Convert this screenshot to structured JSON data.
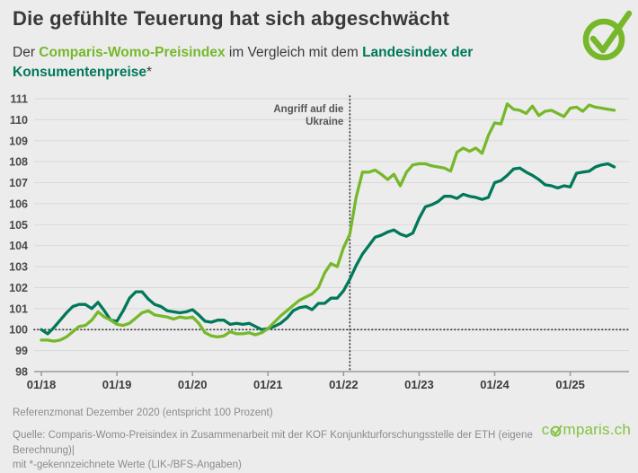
{
  "header": {
    "title": "Die gefühlte Teuerung hat sich abgeschwächt",
    "subtitle": {
      "prefix": "Der ",
      "series1_label": "Comparis-Womo-Preisindex",
      "middle": " im Vergleich mit dem ",
      "series2_label": "Landesindex der Konsumentenpreise",
      "suffix": "*"
    }
  },
  "colors": {
    "womo_green": "#76b82a",
    "lik_green": "#00785a",
    "background": "#ececec",
    "grid": "#d9d9d9",
    "axis": "#9a9a9a",
    "dotted_line": "#3c3c3c",
    "text_dark": "#3b3b3b",
    "text_gray": "#8b8b8b",
    "brand_green": "#82c341"
  },
  "chart_data": {
    "type": "line",
    "title": "Comparis-Womo-Preisindex vs. Landesindex der Konsumentenpreise",
    "x_unit": "month",
    "x_start": "01/2018",
    "x_end": "08/2025",
    "x_tick_labels": [
      "01/18",
      "01/19",
      "01/20",
      "01/21",
      "01/22",
      "01/23",
      "01/24",
      "01/25"
    ],
    "x_tick_month_indices": [
      0,
      12,
      24,
      36,
      48,
      60,
      72,
      84
    ],
    "ylim": [
      98,
      111
    ],
    "y_ticks": [
      98,
      99,
      100,
      101,
      102,
      103,
      104,
      105,
      106,
      107,
      108,
      109,
      110,
      111
    ],
    "grid": true,
    "reference_line": {
      "value": 100
    },
    "event_line": {
      "month_index": 49,
      "x_label": "02/2022",
      "label_lines": [
        "Angriff auf die",
        "Ukraine"
      ]
    },
    "series": [
      {
        "name": "Landesindex der Konsumentenpreise",
        "color": "#00785a",
        "values": [
          100.0,
          99.8,
          100.1,
          100.45,
          100.8,
          101.1,
          101.2,
          101.2,
          101.0,
          101.3,
          100.9,
          100.45,
          100.4,
          100.9,
          101.5,
          101.8,
          101.8,
          101.45,
          101.2,
          101.1,
          100.9,
          100.85,
          100.8,
          100.85,
          100.95,
          100.7,
          100.4,
          100.35,
          100.45,
          100.45,
          100.25,
          100.3,
          100.25,
          100.3,
          100.15,
          100.0,
          100.05,
          100.15,
          100.3,
          100.55,
          100.9,
          101.05,
          101.1,
          100.95,
          101.25,
          101.25,
          101.5,
          101.5,
          101.85,
          102.4,
          103.05,
          103.6,
          104.0,
          104.4,
          104.5,
          104.65,
          104.75,
          104.55,
          104.45,
          104.6,
          105.3,
          105.85,
          105.95,
          106.1,
          106.35,
          106.35,
          106.25,
          106.45,
          106.35,
          106.3,
          106.2,
          106.3,
          107.0,
          107.1,
          107.35,
          107.65,
          107.7,
          107.5,
          107.35,
          107.15,
          106.9,
          106.85,
          106.75,
          106.85,
          106.8,
          107.45,
          107.5,
          107.55,
          107.75,
          107.85,
          107.9,
          107.75
        ]
      },
      {
        "name": "Comparis-Womo-Preisindex",
        "color": "#76b82a",
        "values": [
          99.5,
          99.5,
          99.45,
          99.5,
          99.65,
          99.9,
          100.15,
          100.2,
          100.45,
          100.85,
          100.6,
          100.45,
          100.25,
          100.2,
          100.3,
          100.55,
          100.8,
          100.9,
          100.7,
          100.65,
          100.6,
          100.5,
          100.6,
          100.55,
          100.6,
          100.3,
          99.85,
          99.7,
          99.65,
          99.7,
          99.9,
          99.8,
          99.8,
          99.85,
          99.75,
          99.85,
          100.05,
          100.35,
          100.65,
          100.9,
          101.15,
          101.4,
          101.55,
          101.7,
          102.0,
          102.7,
          103.15,
          103.0,
          103.9,
          104.55,
          106.3,
          107.5,
          107.5,
          107.6,
          107.4,
          107.15,
          107.4,
          106.85,
          107.5,
          107.85,
          107.9,
          107.9,
          107.8,
          107.75,
          107.7,
          107.55,
          108.45,
          108.65,
          108.5,
          108.65,
          108.4,
          109.25,
          109.85,
          109.8,
          110.75,
          110.5,
          110.45,
          110.3,
          110.65,
          110.2,
          110.4,
          110.45,
          110.3,
          110.15,
          110.55,
          110.6,
          110.4,
          110.7,
          110.6,
          110.55,
          110.5,
          110.45
        ]
      }
    ]
  },
  "footer": {
    "reference_note": "Referenzmonat Dezember 2020 (entspricht 100 Prozent)",
    "source_line1": "Quelle: Comparis-Womo-Preisindex in Zusammenarbeit mit der KOF Konjunkturforschungsstelle der ETH (eigene Berechnung)|",
    "source_line2": "mit *-gekennzeichnete Werte (LIK-/BFS-Angaben)",
    "brand": {
      "left": "c",
      "right": "mparis.ch",
      "full": "comparis.ch"
    }
  }
}
